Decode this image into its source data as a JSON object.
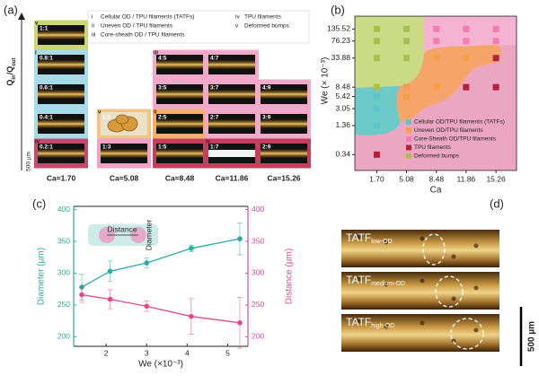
{
  "panel_labels": [
    "(a)",
    "(b)",
    "(c)",
    "(d)"
  ],
  "panel_a": {
    "y_label": [
      "Q",
      "in",
      "/Q",
      "out"
    ],
    "legend": [
      {
        "numeral": "i",
        "text": "Cellular OD / TPU filaments (TATFs)"
      },
      {
        "numeral": "ii",
        "text": "Uneven OD / TPU filaments"
      },
      {
        "numeral": "iii",
        "text": "Core-sheath OD / TPU filaments"
      },
      {
        "numeral": "iv",
        "text": "TPU filaments"
      },
      {
        "numeral": "v",
        "text": "Deformed bumps"
      }
    ],
    "columns": [
      {
        "label": "Ca=1.70",
        "tiles": [
          {
            "label": "1:1",
            "numeral": "v"
          },
          {
            "label": "0.8:1",
            "numeral": "i"
          },
          {
            "label": "0.6:1"
          },
          {
            "label": "0.4:1"
          },
          {
            "label": "0.2:1",
            "numeral": "iv"
          }
        ]
      },
      {
        "label": "Ca=5.08",
        "tiles": [
          {
            "label": "1:2",
            "numeral": "v"
          },
          {
            "label": "1:3"
          }
        ]
      },
      {
        "label": "Ca=8.48",
        "tiles": [
          {
            "label": "4:5",
            "numeral": "iii"
          },
          {
            "label": "3:5"
          },
          {
            "label": "2:5",
            "numeral": "ii"
          },
          {
            "label": "1:5"
          }
        ]
      },
      {
        "label": "Ca=11.86",
        "tiles": [
          {
            "label": "4:7"
          },
          {
            "label": "3:7"
          },
          {
            "label": "2:7"
          },
          {
            "label": "1:7",
            "numeral": "iv"
          }
        ]
      },
      {
        "label": "Ca=15.26",
        "tiles": [
          {
            "label": "4:9"
          },
          {
            "label": "3:9"
          },
          {
            "label": "2:9"
          }
        ]
      }
    ],
    "scale": "500 µm"
  },
  "chart_data": [
    {
      "type": "scatter",
      "xlabel": "Ca",
      "ylabel": "We (× 10⁻³)",
      "xlim": [
        -0.8,
        17.6
      ],
      "ylim": [
        0.16,
        250
      ],
      "log_y": true,
      "xticks": [
        {
          "value": 1.7,
          "label": "1.70"
        },
        5.08,
        8.48,
        11.86,
        15.26
      ],
      "yticks": [
        0.34,
        1.36,
        3.05,
        5.42,
        8.48,
        33.88,
        76.23,
        135.52
      ],
      "legend": "lower right",
      "series": [
        {
          "name": "Cellular OD/TPU filaments (TATFs)",
          "color": "#5cc6c9",
          "x": [
            1.7,
            1.7,
            1.7
          ],
          "values": [
            5.42,
            3.05,
            1.36
          ]
        },
        {
          "name": "Uneven OD/TPU filaments",
          "color": "#f5a048",
          "x": [
            5.08,
            5.08,
            8.48,
            8.48,
            11.86
          ],
          "values": [
            8.48,
            5.42,
            33.88,
            8.48,
            33.88
          ]
        },
        {
          "name": "Core-Sheath OD/TPU filaments",
          "color": "#f27db2",
          "x": [
            8.48,
            8.48,
            11.86,
            11.86,
            15.26,
            15.26
          ],
          "values": [
            135.52,
            76.23,
            135.52,
            76.23,
            135.52,
            76.23
          ]
        },
        {
          "name": "TPU filaments",
          "color": "#b3213f",
          "x": [
            1.7,
            11.86,
            15.26,
            15.26
          ],
          "values": [
            0.34,
            8.48,
            33.88,
            8.48
          ]
        },
        {
          "name": "Deformed bumps",
          "color": "#a9bf4f",
          "x": [
            1.7,
            1.7,
            1.7,
            1.7,
            5.08,
            5.08,
            5.08
          ],
          "values": [
            135.52,
            76.23,
            33.88,
            8.48,
            135.52,
            76.23,
            33.88
          ]
        }
      ]
    },
    {
      "type": "line",
      "xlabel": "We (×10⁻³)",
      "ylabel": "Diameter (µm)",
      "y2label": "Distance (µm)",
      "x": [
        1.4,
        2.1,
        3.0,
        4.1,
        5.3
      ],
      "xlim": [
        1.2,
        5.5
      ],
      "xticks": [
        2,
        3,
        4,
        5
      ],
      "ylim": [
        185,
        405
      ],
      "yticks": [
        200,
        250,
        300,
        350,
        400
      ],
      "y2lim": [
        185,
        405
      ],
      "y2ticks": [
        200,
        250,
        300,
        350,
        400
      ],
      "series": [
        {
          "name": "Diameter",
          "color": "#27ada6",
          "values": [
            278,
            303,
            316,
            339,
            354
          ],
          "errors": [
            20,
            16,
            8,
            5,
            25
          ]
        },
        {
          "name": "Distance",
          "color": "#e5478f",
          "axis": "y2",
          "values": [
            266,
            259,
            248,
            232,
            222
          ],
          "errors": [
            12,
            15,
            8,
            28,
            40
          ]
        }
      ]
    }
  ],
  "panel_d": {
    "labels": [
      {
        "main": "TATF",
        "sub": "low-OD"
      },
      {
        "main": "TATF",
        "sub": "medium-OD"
      },
      {
        "main": "TATF",
        "sub": "high-OD"
      }
    ],
    "scale": "500 µm"
  }
}
